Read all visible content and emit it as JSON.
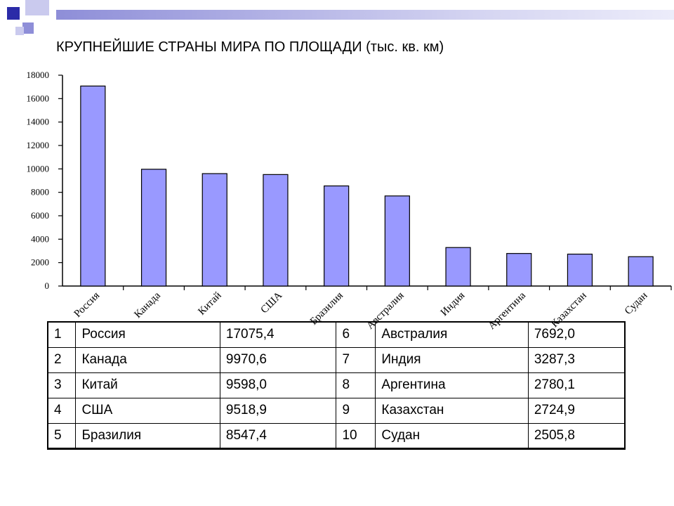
{
  "title": "КРУПНЕЙШИЕ СТРАНЫ МИРА ПО ПЛОЩАДИ (тыс. кв. км)",
  "colors": {
    "bar_fill": "#9999FF",
    "bar_stroke": "#000000",
    "deco_dark": "#2B2BA8",
    "deco_mid": "#8E8ED8",
    "deco_light": "#CACAEE"
  },
  "chart_data": {
    "type": "bar",
    "categories": [
      "Россия",
      "Канада",
      "Китай",
      "США",
      "Бразилия",
      "Австралия",
      "Индия",
      "Аргентина",
      "Казахстан",
      "Судан"
    ],
    "values": [
      17075.4,
      9970.6,
      9598.0,
      9518.9,
      8547.4,
      7692.0,
      3287.3,
      2780.1,
      2724.9,
      2505.8
    ],
    "ylim": [
      0,
      18000
    ],
    "yticks": [
      0,
      2000,
      4000,
      6000,
      8000,
      10000,
      12000,
      14000,
      16000,
      18000
    ],
    "ytick_labels": [
      "0",
      "2000",
      "4000",
      "6000",
      "8000",
      "10000",
      "12000",
      "14000",
      "16000",
      "18000"
    ],
    "grid": false,
    "legend": "none"
  },
  "table": {
    "rows": [
      [
        {
          "num": "1",
          "name": "Россия",
          "value": "17075,4"
        },
        {
          "num": "6",
          "name": "Австралия",
          "value": "7692,0"
        }
      ],
      [
        {
          "num": "2",
          "name": "Канада",
          "value": "9970,6"
        },
        {
          "num": "7",
          "name": "Индия",
          "value": "3287,3"
        }
      ],
      [
        {
          "num": "3",
          "name": "Китай",
          "value": "9598,0"
        },
        {
          "num": "8",
          "name": "Аргентина",
          "value": "2780,1"
        }
      ],
      [
        {
          "num": "4",
          "name": "США",
          "value": "9518,9"
        },
        {
          "num": "9",
          "name": "Казахстан",
          "value": "2724,9"
        }
      ],
      [
        {
          "num": "5",
          "name": "Бразилия",
          "value": "8547,4"
        },
        {
          "num": "10",
          "name": "Судан",
          "value": "2505,8"
        }
      ]
    ]
  }
}
